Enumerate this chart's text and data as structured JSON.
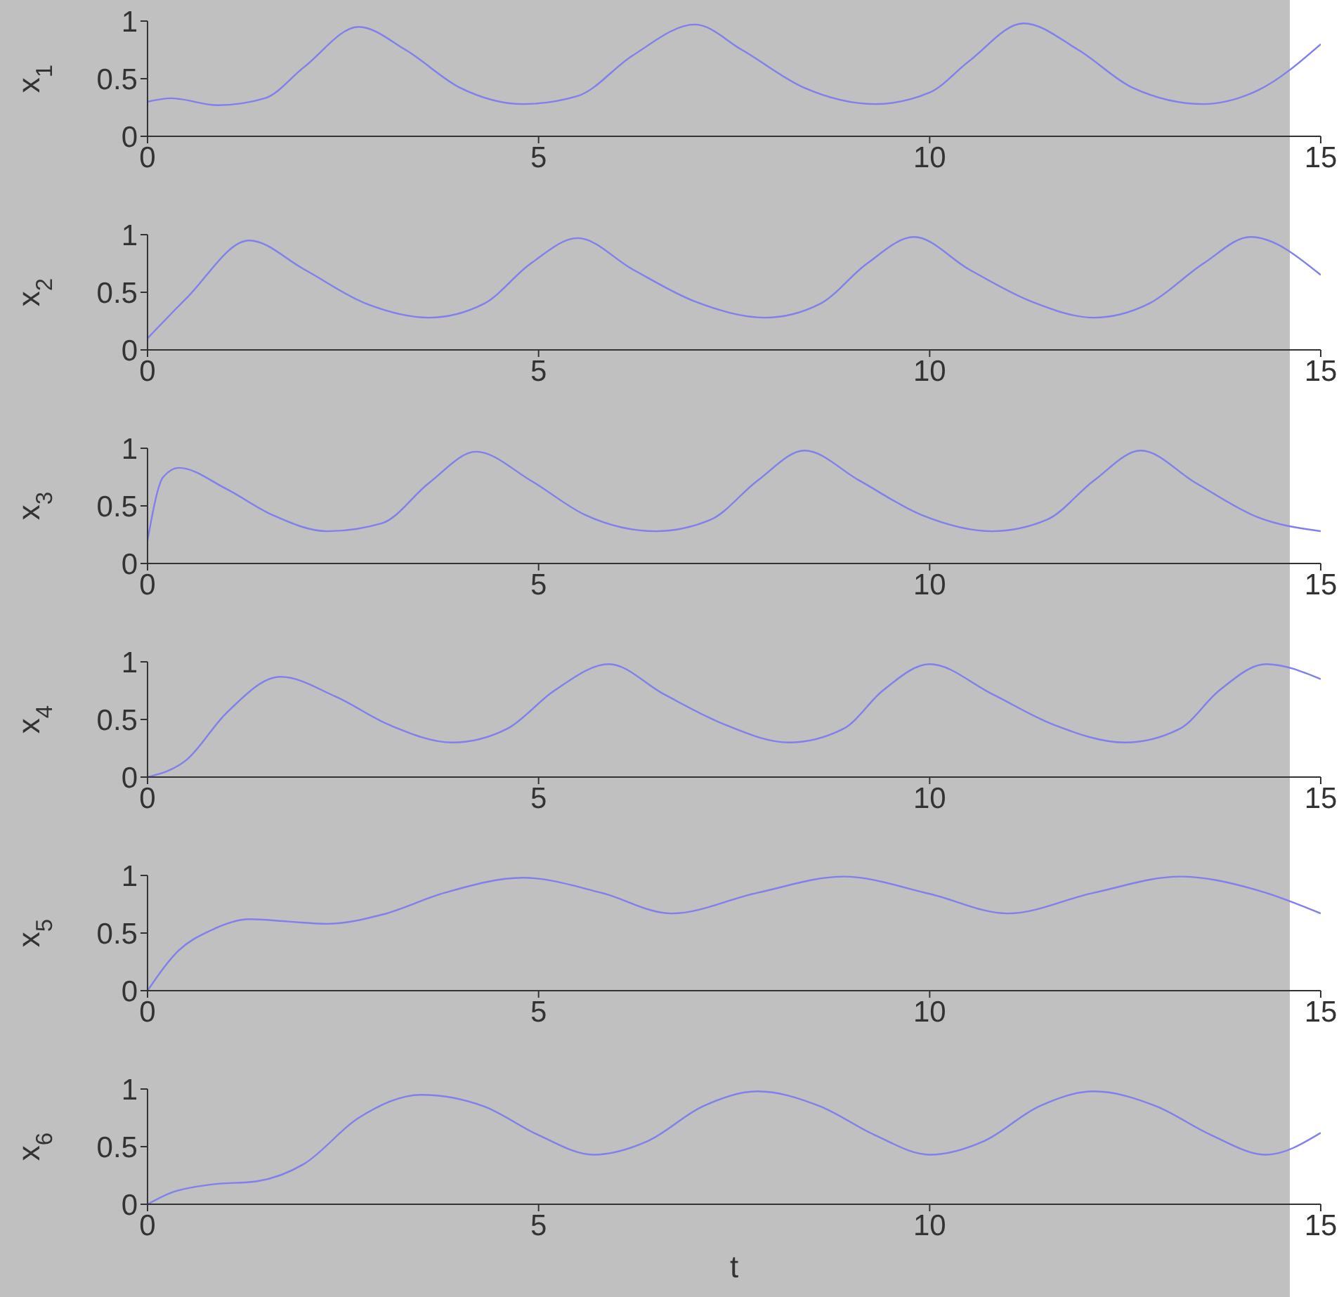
{
  "chart_data": [
    {
      "type": "line",
      "ylabel": "x$_{1}$",
      "xlim": [
        0,
        15
      ],
      "xticks": [
        0,
        5,
        10,
        15
      ],
      "ylim": [
        0,
        1
      ],
      "yticks": [
        0,
        0.5,
        1
      ],
      "series": [
        {
          "color": "#7f7fee",
          "x": [
            0,
            0.3,
            0.9,
            1.5,
            2,
            2.7,
            3.3,
            4,
            4.8,
            5.5,
            6.2,
            7,
            7.6,
            8.4,
            9.3,
            10,
            10.5,
            11.2,
            11.9,
            12.6,
            13.5,
            14.2,
            15
          ],
          "values": [
            0.3,
            0.33,
            0.27,
            0.33,
            0.6,
            0.95,
            0.75,
            0.42,
            0.28,
            0.35,
            0.7,
            0.97,
            0.75,
            0.42,
            0.28,
            0.38,
            0.65,
            0.98,
            0.75,
            0.42,
            0.28,
            0.4,
            0.8
          ]
        }
      ]
    },
    {
      "type": "line",
      "ylabel": "x$_{2}$",
      "xlim": [
        0,
        15
      ],
      "xticks": [
        0,
        5,
        10,
        15
      ],
      "ylim": [
        0,
        1
      ],
      "yticks": [
        0,
        0.5,
        1
      ],
      "series": [
        {
          "color": "#7f7fee",
          "x": [
            0,
            0.5,
            1.3,
            2,
            2.8,
            3.6,
            4.3,
            4.9,
            5.5,
            6.2,
            7,
            7.9,
            8.6,
            9.2,
            9.8,
            10.5,
            11.3,
            12.1,
            12.8,
            13.5,
            14.1,
            15
          ],
          "values": [
            0.1,
            0.45,
            0.95,
            0.7,
            0.4,
            0.28,
            0.4,
            0.75,
            0.97,
            0.7,
            0.42,
            0.28,
            0.4,
            0.75,
            0.98,
            0.7,
            0.42,
            0.28,
            0.4,
            0.75,
            0.98,
            0.65
          ]
        }
      ]
    },
    {
      "type": "line",
      "ylabel": "x$_{3}$",
      "xlim": [
        0,
        15
      ],
      "xticks": [
        0,
        5,
        10,
        15
      ],
      "ylim": [
        0,
        1
      ],
      "yticks": [
        0,
        0.5,
        1
      ],
      "series": [
        {
          "color": "#7f7fee",
          "x": [
            0,
            0.2,
            0.4,
            1,
            1.6,
            2.3,
            3,
            3.6,
            4.2,
            4.9,
            5.6,
            6.5,
            7.2,
            7.8,
            8.4,
            9.1,
            9.9,
            10.8,
            11.5,
            12.1,
            12.7,
            13.4,
            14.2,
            15
          ],
          "values": [
            0.2,
            0.75,
            0.83,
            0.65,
            0.42,
            0.28,
            0.35,
            0.7,
            0.97,
            0.72,
            0.42,
            0.28,
            0.38,
            0.72,
            0.98,
            0.72,
            0.42,
            0.28,
            0.38,
            0.72,
            0.98,
            0.7,
            0.4,
            0.28
          ]
        }
      ]
    },
    {
      "type": "line",
      "ylabel": "x$_{4}$",
      "xlim": [
        0,
        15
      ],
      "xticks": [
        0,
        5,
        10,
        15
      ],
      "ylim": [
        0,
        1
      ],
      "yticks": [
        0,
        0.5,
        1
      ],
      "series": [
        {
          "color": "#7f7fee",
          "x": [
            0,
            0.5,
            1,
            1.7,
            2.4,
            3.1,
            3.9,
            4.6,
            5.2,
            5.9,
            6.6,
            7.4,
            8.2,
            8.9,
            9.4,
            10,
            10.8,
            11.6,
            12.5,
            13.2,
            13.7,
            14.3,
            15
          ],
          "values": [
            0,
            0.15,
            0.55,
            0.87,
            0.7,
            0.45,
            0.3,
            0.42,
            0.75,
            0.98,
            0.72,
            0.45,
            0.3,
            0.42,
            0.75,
            0.98,
            0.72,
            0.45,
            0.3,
            0.42,
            0.75,
            0.98,
            0.85
          ]
        }
      ]
    },
    {
      "type": "line",
      "ylabel": "x$_{5}$",
      "xlim": [
        0,
        15
      ],
      "xticks": [
        0,
        5,
        10,
        15
      ],
      "ylim": [
        0,
        1
      ],
      "yticks": [
        0,
        0.5,
        1
      ],
      "series": [
        {
          "color": "#7f7fee",
          "x": [
            0,
            0.4,
            0.8,
            1.3,
            1.8,
            2.3,
            3,
            3.8,
            4.8,
            5.8,
            6.7,
            7.8,
            8.9,
            10,
            11,
            12.1,
            13.2,
            14.2,
            15
          ],
          "values": [
            0,
            0.35,
            0.52,
            0.62,
            0.6,
            0.58,
            0.66,
            0.85,
            0.98,
            0.85,
            0.67,
            0.85,
            0.99,
            0.84,
            0.67,
            0.85,
            0.99,
            0.87,
            0.67
          ]
        }
      ]
    },
    {
      "type": "line",
      "ylabel": "x$_{6}$",
      "xlabel": "t",
      "xlim": [
        0,
        15
      ],
      "xticks": [
        0,
        5,
        10,
        15
      ],
      "ylim": [
        0,
        1
      ],
      "yticks": [
        0,
        0.5,
        1
      ],
      "series": [
        {
          "color": "#7f7fee",
          "x": [
            0,
            0.3,
            0.8,
            1.4,
            2,
            2.7,
            3.5,
            4.3,
            5,
            5.7,
            6.4,
            7.1,
            7.8,
            8.6,
            9.3,
            10,
            10.7,
            11.4,
            12.1,
            12.9,
            13.6,
            14.3,
            15
          ],
          "values": [
            0,
            0.1,
            0.17,
            0.2,
            0.35,
            0.75,
            0.95,
            0.85,
            0.6,
            0.43,
            0.55,
            0.85,
            0.98,
            0.85,
            0.6,
            0.43,
            0.55,
            0.85,
            0.98,
            0.85,
            0.6,
            0.43,
            0.62
          ]
        }
      ]
    }
  ]
}
